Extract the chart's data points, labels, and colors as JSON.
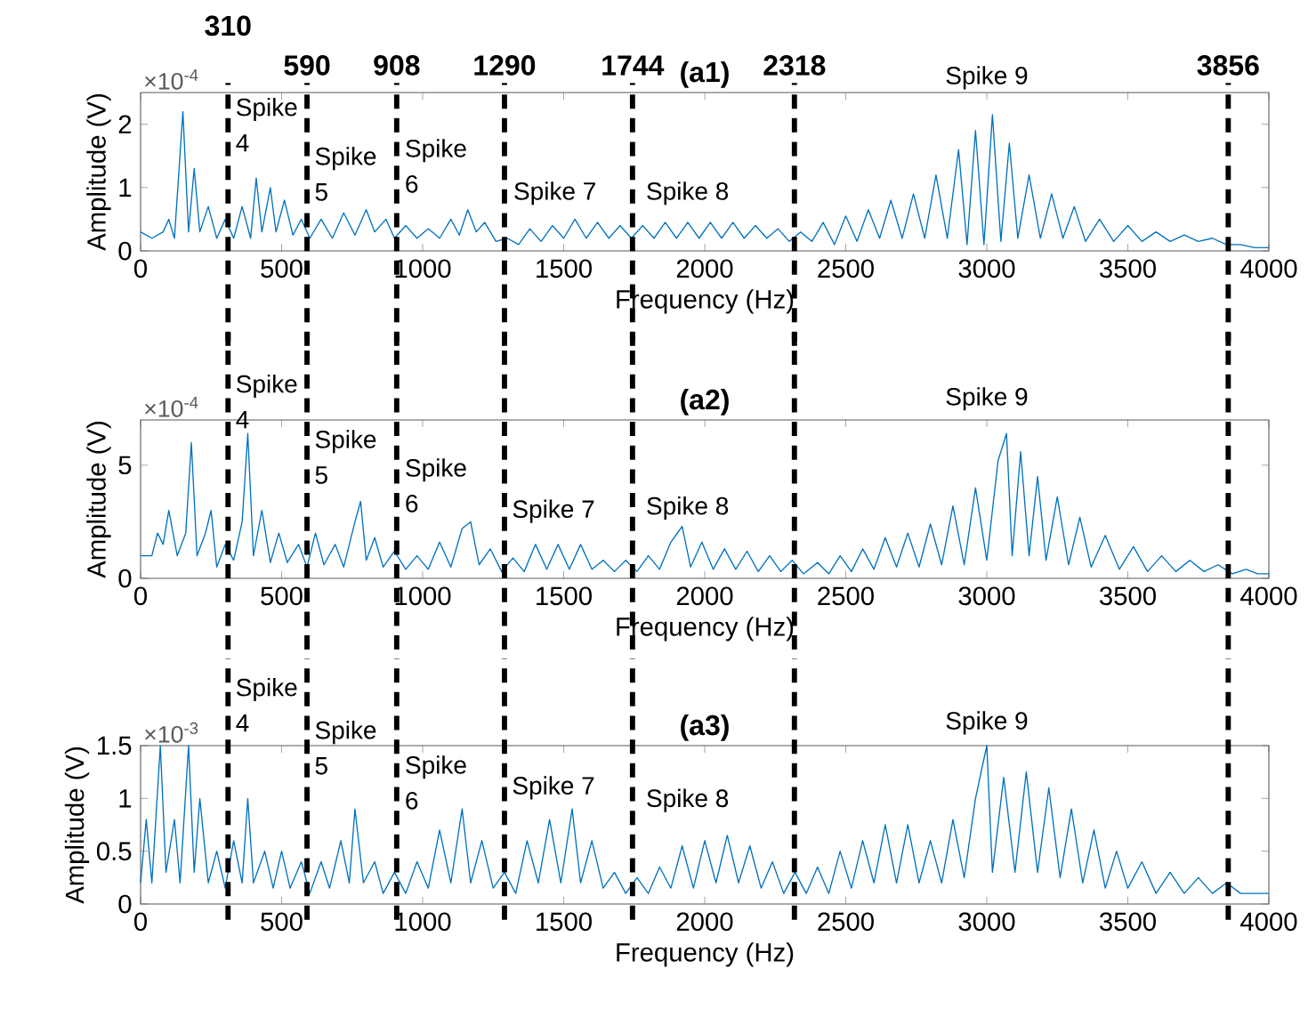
{
  "chart_data": [
    {
      "type": "line",
      "title": "(a1)",
      "xlabel": "Frequency (Hz)",
      "ylabel": "Amplitude (V)",
      "color": "#0072bd",
      "xlim": [
        0,
        4000
      ],
      "xticks": [
        0,
        500,
        1000,
        1500,
        2000,
        2500,
        3000,
        3500,
        4000
      ],
      "ylim": [
        0,
        2.5
      ],
      "yticks": [
        0,
        1,
        2
      ],
      "annotations": [
        "×10$^{-4}$",
        "Spike 4",
        "Spike 5",
        "Spike 6",
        "Spike 7",
        "Spike 8",
        "Spike 9"
      ],
      "ref_lines": [
        {
          "axis": "x",
          "value": 310,
          "label": "310",
          "color": "#000000",
          "line_style": "dashed"
        },
        {
          "axis": "x",
          "value": 590,
          "label": "590",
          "color": "#000000",
          "line_style": "dashed"
        },
        {
          "axis": "x",
          "value": 908,
          "label": "908",
          "color": "#000000",
          "line_style": "dashed"
        },
        {
          "axis": "x",
          "value": 1290,
          "label": "1290",
          "color": "#000000",
          "line_style": "dashed"
        },
        {
          "axis": "x",
          "value": 1744,
          "label": "1744",
          "color": "#000000",
          "line_style": "dashed"
        },
        {
          "axis": "x",
          "value": 2318,
          "label": "2318",
          "color": "#000000",
          "line_style": "dashed"
        },
        {
          "axis": "x",
          "value": 3856,
          "label": "3856",
          "color": "#000000",
          "line_style": "dashed"
        }
      ],
      "x": [
        0,
        20,
        40,
        60,
        80,
        100,
        120,
        150,
        170,
        190,
        210,
        240,
        270,
        300,
        330,
        360,
        390,
        410,
        430,
        460,
        480,
        510,
        540,
        570,
        600,
        640,
        680,
        720,
        760,
        800,
        830,
        870,
        900,
        940,
        980,
        1020,
        1060,
        1100,
        1130,
        1160,
        1190,
        1220,
        1260,
        1300,
        1340,
        1380,
        1420,
        1460,
        1500,
        1540,
        1580,
        1620,
        1660,
        1700,
        1740,
        1780,
        1820,
        1860,
        1900,
        1940,
        1980,
        2020,
        2060,
        2100,
        2140,
        2180,
        2220,
        2260,
        2300,
        2340,
        2380,
        2420,
        2460,
        2500,
        2540,
        2580,
        2620,
        2660,
        2700,
        2740,
        2780,
        2820,
        2860,
        2900,
        2930,
        2960,
        2990,
        3020,
        3050,
        3080,
        3110,
        3150,
        3190,
        3230,
        3270,
        3310,
        3350,
        3400,
        3450,
        3500,
        3550,
        3600,
        3650,
        3700,
        3750,
        3800,
        3850,
        3900,
        3950,
        4000
      ],
      "values": [
        0.3,
        null,
        0.2,
        null,
        0.3,
        0.5,
        0.2,
        2.2,
        0.3,
        1.3,
        0.3,
        0.7,
        0.2,
        0.5,
        0.2,
        0.7,
        0.2,
        1.15,
        0.3,
        1.0,
        0.3,
        0.8,
        0.25,
        0.5,
        0.2,
        0.5,
        0.2,
        0.6,
        0.25,
        0.65,
        0.3,
        0.5,
        0.2,
        0.4,
        0.2,
        0.35,
        0.2,
        0.5,
        0.25,
        0.65,
        0.3,
        0.45,
        0.15,
        0.2,
        0.1,
        0.35,
        0.15,
        0.4,
        0.2,
        0.5,
        0.2,
        0.45,
        0.2,
        0.4,
        0.2,
        0.4,
        0.2,
        0.45,
        0.2,
        0.45,
        0.2,
        0.45,
        0.2,
        0.45,
        0.2,
        0.4,
        0.2,
        0.35,
        0.15,
        0.3,
        0.15,
        0.45,
        0.1,
        0.55,
        0.15,
        0.65,
        0.2,
        0.8,
        0.2,
        0.9,
        0.2,
        1.2,
        0.2,
        1.6,
        0.1,
        1.9,
        0.1,
        2.15,
        0.15,
        1.7,
        0.2,
        1.2,
        0.2,
        0.9,
        0.2,
        0.7,
        0.15,
        0.5,
        0.15,
        0.4,
        0.15,
        0.3,
        0.15,
        0.25,
        0.15,
        0.2,
        0.1,
        0.1,
        0.05,
        0.05
      ]
    },
    {
      "type": "line",
      "title": "(a2)",
      "xlabel": "Frequency (Hz)",
      "ylabel": "Amplitude (V)",
      "color": "#0072bd",
      "xlim": [
        0,
        4000
      ],
      "xticks": [
        0,
        500,
        1000,
        1500,
        2000,
        2500,
        3000,
        3500,
        4000
      ],
      "ylim": [
        0,
        7
      ],
      "yticks": [
        0,
        5
      ],
      "annotations": [
        "×10$^{-4}$",
        "Spike 4",
        "Spike 5",
        "Spike 6",
        "Spike 7",
        "Spike 8",
        "Spike 9"
      ],
      "ref_lines": [
        {
          "axis": "x",
          "value": 310,
          "color": "#000000",
          "line_style": "dashed"
        },
        {
          "axis": "x",
          "value": 590,
          "color": "#000000",
          "line_style": "dashed"
        },
        {
          "axis": "x",
          "value": 908,
          "color": "#000000",
          "line_style": "dashed"
        },
        {
          "axis": "x",
          "value": 1290,
          "color": "#000000",
          "line_style": "dashed"
        },
        {
          "axis": "x",
          "value": 1744,
          "color": "#000000",
          "line_style": "dashed"
        },
        {
          "axis": "x",
          "value": 2318,
          "color": "#000000",
          "line_style": "dashed"
        },
        {
          "axis": "x",
          "value": 3856,
          "color": "#000000",
          "line_style": "dashed"
        }
      ],
      "x": [
        0,
        20,
        40,
        60,
        70,
        80,
        100,
        130,
        160,
        180,
        200,
        230,
        250,
        270,
        300,
        330,
        360,
        380,
        400,
        430,
        460,
        490,
        520,
        560,
        590,
        620,
        650,
        690,
        720,
        760,
        780,
        800,
        830,
        860,
        900,
        940,
        980,
        1020,
        1060,
        1100,
        1140,
        1170,
        1200,
        1240,
        1280,
        1320,
        1360,
        1400,
        1440,
        1480,
        1520,
        1560,
        1600,
        1640,
        1680,
        1720,
        1760,
        1800,
        1840,
        1880,
        1920,
        1950,
        1990,
        2030,
        2070,
        2110,
        2150,
        2190,
        2230,
        2270,
        2310,
        2350,
        2400,
        2440,
        2480,
        2520,
        2560,
        2600,
        2640,
        2680,
        2720,
        2760,
        2800,
        2840,
        2880,
        2920,
        2960,
        3000,
        3040,
        3070,
        3090,
        3120,
        3150,
        3180,
        3210,
        3250,
        3290,
        3330,
        3370,
        3420,
        3470,
        3520,
        3570,
        3620,
        3670,
        3720,
        3770,
        3820,
        3870,
        3920,
        3960,
        4000
      ],
      "values": [
        1,
        null,
        1,
        2,
        null,
        1.5,
        3,
        1,
        2,
        6,
        1,
        2,
        3,
        0.5,
        1.5,
        0.8,
        2.5,
        6.4,
        1,
        3,
        0.7,
        2,
        0.7,
        1.5,
        0.5,
        2,
        0.6,
        1.5,
        0.5,
        2.5,
        3.4,
        0.8,
        1.8,
        0.5,
        1.2,
        0.4,
        1.0,
        0.4,
        1.6,
        0.5,
        2.2,
        2.5,
        0.6,
        1.3,
        0.3,
        0.9,
        0.3,
        1.5,
        0.4,
        1.5,
        0.4,
        1.5,
        0.4,
        0.8,
        0.3,
        0.8,
        0.3,
        1.0,
        0.4,
        1.6,
        2.3,
        0.5,
        1.6,
        0.4,
        1.3,
        0.4,
        1.2,
        0.3,
        1.0,
        0.3,
        0.8,
        0.2,
        0.7,
        0.2,
        1.0,
        0.3,
        1.3,
        0.4,
        1.8,
        0.5,
        2.0,
        0.5,
        2.4,
        0.6,
        3.2,
        0.6,
        4.0,
        0.8,
        5.2,
        6.4,
        1.0,
        5.6,
        1.0,
        4.5,
        0.8,
        3.6,
        0.6,
        2.7,
        0.5,
        1.9,
        0.4,
        1.4,
        0.3,
        1.0,
        0.3,
        0.8,
        0.3,
        0.6,
        0.2,
        0.4,
        0.2,
        0.2
      ]
    },
    {
      "type": "line",
      "title": "(a3)",
      "xlabel": "Frequency (Hz)",
      "ylabel": "Amplitude (V)",
      "color": "#0072bd",
      "xlim": [
        0,
        4000
      ],
      "xticks": [
        0,
        500,
        1000,
        1500,
        2000,
        2500,
        3000,
        3500,
        4000
      ],
      "ylim": [
        0,
        1.5
      ],
      "yticks": [
        0,
        0.5,
        1,
        1.5
      ],
      "annotations": [
        "×10$^{-3}$",
        "Spike 4",
        "Spike 5",
        "Spike 6",
        "Spike 7",
        "Spike 8",
        "Spike 9"
      ],
      "ref_lines": [
        {
          "axis": "x",
          "value": 310,
          "color": "#000000",
          "line_style": "dashed"
        },
        {
          "axis": "x",
          "value": 590,
          "color": "#000000",
          "line_style": "dashed"
        },
        {
          "axis": "x",
          "value": 908,
          "color": "#000000",
          "line_style": "dashed"
        },
        {
          "axis": "x",
          "value": 1290,
          "color": "#000000",
          "line_style": "dashed"
        },
        {
          "axis": "x",
          "value": 1744,
          "color": "#000000",
          "line_style": "dashed"
        },
        {
          "axis": "x",
          "value": 2318,
          "color": "#000000",
          "line_style": "dashed"
        },
        {
          "axis": "x",
          "value": 3856,
          "color": "#000000",
          "line_style": "dashed"
        }
      ],
      "x": [
        0,
        20,
        40,
        70,
        90,
        120,
        140,
        170,
        190,
        210,
        240,
        270,
        300,
        330,
        360,
        380,
        400,
        440,
        470,
        500,
        530,
        570,
        600,
        640,
        670,
        710,
        740,
        760,
        790,
        830,
        860,
        900,
        940,
        980,
        1020,
        1060,
        1100,
        1140,
        1170,
        1210,
        1250,
        1290,
        1330,
        1370,
        1410,
        1450,
        1490,
        1530,
        1560,
        1600,
        1640,
        1680,
        1720,
        1760,
        1800,
        1840,
        1880,
        1920,
        1960,
        2000,
        2040,
        2080,
        2120,
        2160,
        2200,
        2240,
        2280,
        2320,
        2360,
        2400,
        2440,
        2480,
        2520,
        2560,
        2600,
        2640,
        2680,
        2720,
        2760,
        2800,
        2840,
        2880,
        2920,
        2960,
        3000,
        3020,
        3060,
        3100,
        3140,
        3180,
        3220,
        3260,
        3300,
        3340,
        3380,
        3420,
        3460,
        3500,
        3550,
        3600,
        3650,
        3700,
        3750,
        3800,
        3850,
        3900,
        3950,
        4000
      ],
      "values": [
        0.2,
        0.8,
        0.2,
        1.5,
        0.3,
        0.8,
        0.2,
        1.5,
        0.3,
        1.0,
        0.2,
        0.5,
        0.15,
        0.6,
        0.2,
        1.0,
        0.2,
        0.5,
        0.15,
        0.5,
        0.15,
        0.4,
        0.1,
        0.4,
        0.15,
        0.6,
        0.2,
        0.9,
        0.2,
        0.4,
        0.1,
        0.3,
        0.1,
        0.4,
        0.15,
        0.7,
        0.2,
        0.9,
        0.2,
        0.6,
        0.15,
        0.3,
        0.1,
        0.6,
        0.2,
        0.8,
        0.2,
        0.9,
        0.2,
        0.6,
        0.15,
        0.3,
        0.1,
        0.25,
        0.1,
        0.35,
        0.15,
        0.55,
        0.15,
        0.6,
        0.2,
        0.65,
        0.2,
        0.55,
        0.15,
        0.4,
        0.1,
        0.3,
        0.1,
        0.35,
        0.1,
        0.5,
        0.15,
        0.6,
        0.2,
        0.75,
        0.2,
        0.75,
        0.2,
        0.6,
        0.2,
        0.8,
        0.25,
        1.0,
        1.5,
        0.3,
        1.2,
        0.3,
        1.25,
        0.3,
        1.1,
        0.25,
        0.9,
        0.2,
        0.7,
        0.15,
        0.5,
        0.15,
        0.4,
        0.1,
        0.3,
        0.1,
        0.25,
        0.1,
        0.2,
        0.1,
        0.1,
        0.1
      ]
    }
  ]
}
